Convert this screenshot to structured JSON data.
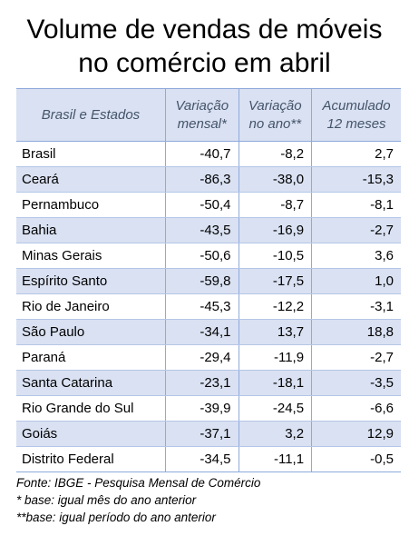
{
  "title": {
    "line1": "Volume de vendas de móveis",
    "line2": "no comércio em abril"
  },
  "table": {
    "headers": {
      "region": "Brasil e Estados",
      "monthly_line1": "Variação",
      "monthly_line2": "mensal*",
      "yearly_line1": "Variação",
      "yearly_line2": "no ano**",
      "accum_line1": "Acumulado",
      "accum_line2": "12 meses"
    },
    "rows": [
      {
        "name": "Brasil",
        "monthly": "-40,7",
        "yearly": "-8,2",
        "accum": "2,7"
      },
      {
        "name": "Ceará",
        "monthly": "-86,3",
        "yearly": "-38,0",
        "accum": "-15,3"
      },
      {
        "name": "Pernambuco",
        "monthly": "-50,4",
        "yearly": "-8,7",
        "accum": "-8,1"
      },
      {
        "name": "Bahia",
        "monthly": "-43,5",
        "yearly": "-16,9",
        "accum": "-2,7"
      },
      {
        "name": "Minas Gerais",
        "monthly": "-50,6",
        "yearly": "-10,5",
        "accum": "3,6"
      },
      {
        "name": "Espírito Santo",
        "monthly": "-59,8",
        "yearly": "-17,5",
        "accum": "1,0"
      },
      {
        "name": "Rio de Janeiro",
        "monthly": "-45,3",
        "yearly": "-12,2",
        "accum": "-3,1"
      },
      {
        "name": "São Paulo",
        "monthly": "-34,1",
        "yearly": "13,7",
        "accum": "18,8"
      },
      {
        "name": "Paraná",
        "monthly": "-29,4",
        "yearly": "-11,9",
        "accum": "-2,7"
      },
      {
        "name": "Santa Catarina",
        "monthly": "-23,1",
        "yearly": "-18,1",
        "accum": "-3,5"
      },
      {
        "name": "Rio Grande do Sul",
        "monthly": "-39,9",
        "yearly": "-24,5",
        "accum": "-6,6"
      },
      {
        "name": "Goiás",
        "monthly": "-37,1",
        "yearly": "3,2",
        "accum": "12,9"
      },
      {
        "name": "Distrito Federal",
        "monthly": "-34,5",
        "yearly": "-11,1",
        "accum": "-0,5"
      }
    ]
  },
  "notes": {
    "source": "Fonte: IBGE - Pesquisa Mensal de Comércio",
    "note1": "* base: igual mês do ano anterior",
    "note2": "**base: igual período do ano anterior"
  },
  "colors": {
    "header_fill": "#d9e1f2",
    "stripe_fill": "#d9e1f2",
    "header_text": "#44546a",
    "grid": "#8ea9db"
  }
}
